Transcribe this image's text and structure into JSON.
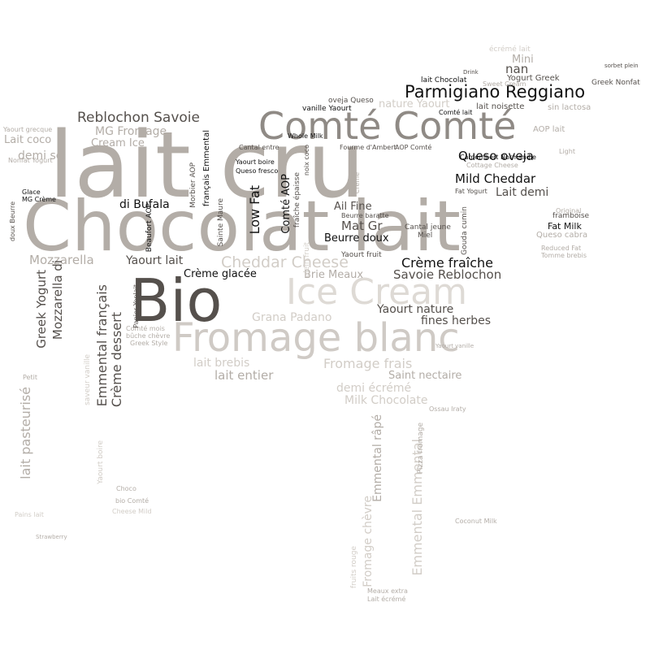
{
  "palette": {
    "background": "#ffffff",
    "darkest": "#55504c",
    "dark": "#7a7470",
    "mid": "#b3ada7",
    "light": "#d2cdc7",
    "faint": "#e3dfda",
    "ink": "#111111"
  },
  "words": {
    "lait_cru": "lait cru",
    "chocolat_lait": "Chocolat lait",
    "comte_comte": "Comté Comté",
    "bio": "Bio",
    "fromage_blanc": "Fromage blanc",
    "ice_cream": "Ice Cream",
    "parmigiano": "Parmigiano Reggiano",
    "reblochon_savoie": "Reblochon Savoie",
    "cheddar_cheese": "Cheddar Cheese",
    "creme_fraiche": "Crème fraîche",
    "savoie_reblochon": "Savoie Reblochon",
    "queso_oveja": "Queso oveja",
    "mild_cheddar": "Mild Cheddar",
    "lait_demi": "Lait demi",
    "yaourt_nature": "Yaourt nature",
    "fines_herbes": "fines herbes",
    "creme_glacee": "Crème glacée",
    "yaourt_lait": "Yaourt lait",
    "di_bufala": "di Bufala",
    "mozzarella": "Mozzarella",
    "mozzarella_di": "Mozzarella di",
    "greek_yogurt": "Greek Yogurt",
    "emmental_francais": "Emmental français",
    "creme_dessert": "Crème dessert",
    "mg_fromage": "MG Fromage",
    "cream_ice": "Cream Ice",
    "demi_sel": "demi sel",
    "lait_coco": "Lait coco",
    "grana_padano": "Grana Padano",
    "lait_brebis": "lait brebis",
    "lait_entier": "lait entier",
    "fromage_frais": "Fromage frais",
    "demi_ecreme": "demi écrémé",
    "milk_chocolate": "Milk Chocolate",
    "saint_nectaire": "Saint nectaire",
    "brie_meaux": "Brie Meaux",
    "beurre_doux": "Beurre doux",
    "mat_gr": "Mat Gr",
    "ail_fine": "Ail Fine",
    "low_fat": "Low Fat",
    "comte_aop": "Comté AOP",
    "mini": "Mini",
    "nan": "nan",
    "lait_pasteurise": "lait pasteurisé",
    "emmental_rape": "Emmental râpé",
    "emmental_emmental": "Emmental Emmental",
    "fromage_chevre": "Fromage chèvre",
    "yaourt_fruit": "Yaourt fruit",
    "fat_milk": "Fat Milk",
    "framboise": "framboise",
    "queso_cabra": "Queso cabra",
    "yogurt_greek": "Yogurt Greek",
    "lait_chocolat": "lait Chocolat",
    "lait_noisette": "lait noisette",
    "sweet_cream": "Sweet Cream",
    "oveja_queso": "oveja Queso",
    "vanille_yaourt": "vanille Yaourt",
    "whole_milk": "Whole Milk",
    "nature_yaourt": "nature Yaourt",
    "cantal_jeune": "Cantal jeune",
    "miel": "Miel",
    "fat_yogurt": "Fat Yogurt",
    "saveur_vanille": "saveur vanille",
    "choco": "Choco",
    "bio_comte": "bio Comté",
    "coconut_milk": "Coconut Milk",
    "pizza_fromage": "Pizza fromage",
    "fruits_rouge": "fruits rouge",
    "meaux_extra": "Meaux extra",
    "lait_ecreme": "Lait écrémé",
    "ecreme_lait": "écrémé lait",
    "greek_nonfat": "Greek Nonfat",
    "light": "Light",
    "original": "Original",
    "reduced_fat": "Reduced Fat",
    "tomme_brebis": "Tomme brebis",
    "camembert_normandie": "Camembert Normandie",
    "cottage_cheese": "Cottage Cheese",
    "gouda_cumin": "Gouda cumin",
    "beurre_baratte": "Beurre baratte",
    "cantal_entre": "Cantal entre",
    "queso_fresco": "Queso fresco",
    "yaourt_boire": "Yaourt boire",
    "glace": "Glace",
    "mg_creme": "MG Crème",
    "doux_beurre": "doux Beurre",
    "comte_mois": "Comté mois",
    "greek_style": "Greek Style",
    "buche_chevre": "bûche chèvre",
    "beaufort_aop": "Beaufort AOP",
    "panier_yoplait": "Panier Yoplait",
    "morbier_aop": "Morbier AOP",
    "sainte_maure": "Sainte Maure",
    "francais_emmental": "français Emmental",
    "creme": "Crème",
    "ossau_iraty": "Ossau Iraty",
    "yaourt_grecque": "Yaourt grecque",
    "nonfat_yogurt": "Nonfat Yogurt",
    "plein_fruit": "plein fruit",
    "sin_lactosa": "sin lactosa",
    "aop_lait": "AOP lait",
    "petit": "Petit",
    "fourme": "Fourme d'Ambert",
    "aop_comte": "AOP Comté",
    "fraiche_epaisse": "fraîche épaisse",
    "noix_coco": "noix coco",
    "yaourt_vanille": "Yaourt vanille",
    "strawberry": "Strawberry",
    "pains_lait": "Pains lait",
    "cheese_mild": "Cheese Mild",
    "comte_lait": "Comté lait",
    "drink": "Drink",
    "sorbet_plein": "sorbet plein"
  }
}
